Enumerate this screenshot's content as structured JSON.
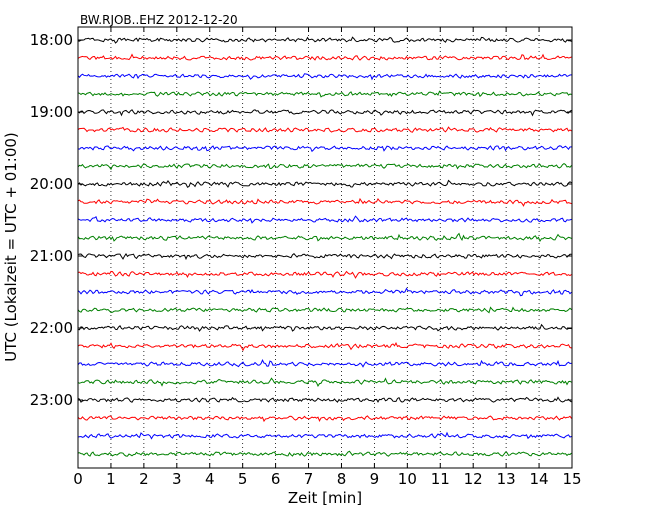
{
  "chart_data": {
    "type": "line",
    "title": "BW.RJOB..EHZ 2012-12-20",
    "xlabel": "Zeit  [min]",
    "ylabel": "UTC (Lokalzeit = UTC + 01:00)",
    "xlim": [
      0,
      15
    ],
    "x_ticks": [
      "0",
      "1",
      "2",
      "3",
      "4",
      "5",
      "6",
      "7",
      "8",
      "9",
      "10",
      "11",
      "12",
      "13",
      "14",
      "15"
    ],
    "y_ticks": [
      "18:00",
      "19:00",
      "20:00",
      "21:00",
      "22:00",
      "23:00"
    ],
    "grid": "vertical dotted",
    "rows_per_hour": 4,
    "row_minutes": 15,
    "color_cycle": [
      "#000000",
      "#ff0000",
      "#0000ff",
      "#008000"
    ],
    "rows": [
      {
        "start": "18:00",
        "color": "#000000"
      },
      {
        "start": "18:15",
        "color": "#ff0000"
      },
      {
        "start": "18:30",
        "color": "#0000ff"
      },
      {
        "start": "18:45",
        "color": "#008000"
      },
      {
        "start": "19:00",
        "color": "#000000"
      },
      {
        "start": "19:15",
        "color": "#ff0000"
      },
      {
        "start": "19:30",
        "color": "#0000ff"
      },
      {
        "start": "19:45",
        "color": "#008000"
      },
      {
        "start": "20:00",
        "color": "#000000"
      },
      {
        "start": "20:15",
        "color": "#ff0000"
      },
      {
        "start": "20:30",
        "color": "#0000ff"
      },
      {
        "start": "20:45",
        "color": "#008000"
      },
      {
        "start": "21:00",
        "color": "#000000"
      },
      {
        "start": "21:15",
        "color": "#ff0000"
      },
      {
        "start": "21:30",
        "color": "#0000ff"
      },
      {
        "start": "21:45",
        "color": "#008000"
      },
      {
        "start": "22:00",
        "color": "#000000"
      },
      {
        "start": "22:15",
        "color": "#ff0000"
      },
      {
        "start": "22:30",
        "color": "#0000ff"
      },
      {
        "start": "22:45",
        "color": "#008000"
      },
      {
        "start": "23:00",
        "color": "#000000"
      },
      {
        "start": "23:15",
        "color": "#ff0000"
      },
      {
        "start": "23:30",
        "color": "#0000ff"
      },
      {
        "start": "23:45",
        "color": "#008000"
      }
    ]
  }
}
